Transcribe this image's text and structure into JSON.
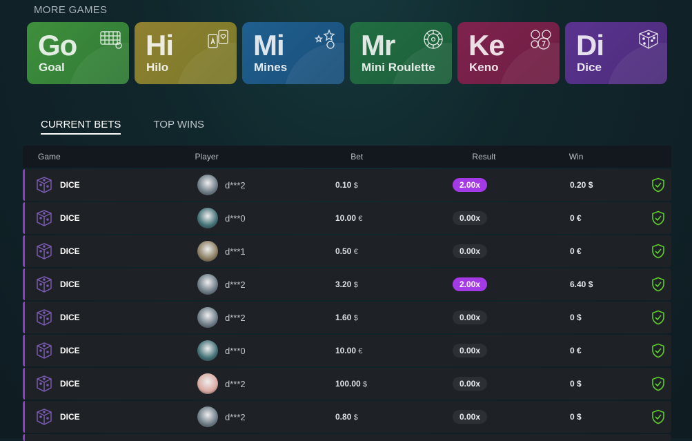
{
  "section_title": "MORE GAMES",
  "games": [
    {
      "abbr": "Go",
      "name": "Goal",
      "icon": "goal-net-icon",
      "color": "#2f7a36",
      "color2": "#3f8f3c"
    },
    {
      "abbr": "Hi",
      "name": "Hilo",
      "icon": "cards-icon",
      "color": "#7a7a2a",
      "color2": "#8f8030"
    },
    {
      "abbr": "Mi",
      "name": "Mines",
      "icon": "stars-icon",
      "color": "#1a4f7a",
      "color2": "#1f5f8f"
    },
    {
      "abbr": "Mr",
      "name": "Mini Roulette",
      "icon": "roulette-icon",
      "color": "#1c5e3a",
      "color2": "#226e42"
    },
    {
      "abbr": "Ke",
      "name": "Keno",
      "icon": "keno-balls-icon",
      "color": "#6e1e43",
      "color2": "#7e224d"
    },
    {
      "abbr": "Di",
      "name": "Dice",
      "icon": "dice-icon",
      "color": "#4c2c7a",
      "color2": "#5a338f"
    }
  ],
  "tabs": [
    "CURRENT BETS",
    "TOP WINS"
  ],
  "columns": {
    "game": "Game",
    "player": "Player",
    "bet": "Bet",
    "result": "Result",
    "win": "Win"
  },
  "rows": [
    {
      "game": "DICE",
      "player": "d***2",
      "avatar": "#6b7a85",
      "bet": "0.10",
      "bet_cur": "$",
      "result": "2.00x",
      "hit": true,
      "win": "0.20",
      "win_cur": "$"
    },
    {
      "game": "DICE",
      "player": "d***0",
      "avatar": "#3f6f74",
      "bet": "10.00",
      "bet_cur": "€",
      "result": "0.00x",
      "hit": false,
      "win": "0",
      "win_cur": "€"
    },
    {
      "game": "DICE",
      "player": "d***1",
      "avatar": "#8a7d60",
      "bet": "0.50",
      "bet_cur": "€",
      "result": "0.00x",
      "hit": false,
      "win": "0",
      "win_cur": "€"
    },
    {
      "game": "DICE",
      "player": "d***2",
      "avatar": "#6b7a85",
      "bet": "3.20",
      "bet_cur": "$",
      "result": "2.00x",
      "hit": true,
      "win": "6.40",
      "win_cur": "$"
    },
    {
      "game": "DICE",
      "player": "d***2",
      "avatar": "#6b7a85",
      "bet": "1.60",
      "bet_cur": "$",
      "result": "0.00x",
      "hit": false,
      "win": "0",
      "win_cur": "$"
    },
    {
      "game": "DICE",
      "player": "d***0",
      "avatar": "#3f6f74",
      "bet": "10.00",
      "bet_cur": "€",
      "result": "0.00x",
      "hit": false,
      "win": "0",
      "win_cur": "€"
    },
    {
      "game": "DICE",
      "player": "d***2",
      "avatar": "#d9a9a0",
      "bet": "100.00",
      "bet_cur": "$",
      "result": "0.00x",
      "hit": false,
      "win": "0",
      "win_cur": "$"
    },
    {
      "game": "DICE",
      "player": "d***2",
      "avatar": "#6b7a85",
      "bet": "0.80",
      "bet_cur": "$",
      "result": "0.00x",
      "hit": false,
      "win": "0",
      "win_cur": "$"
    }
  ]
}
